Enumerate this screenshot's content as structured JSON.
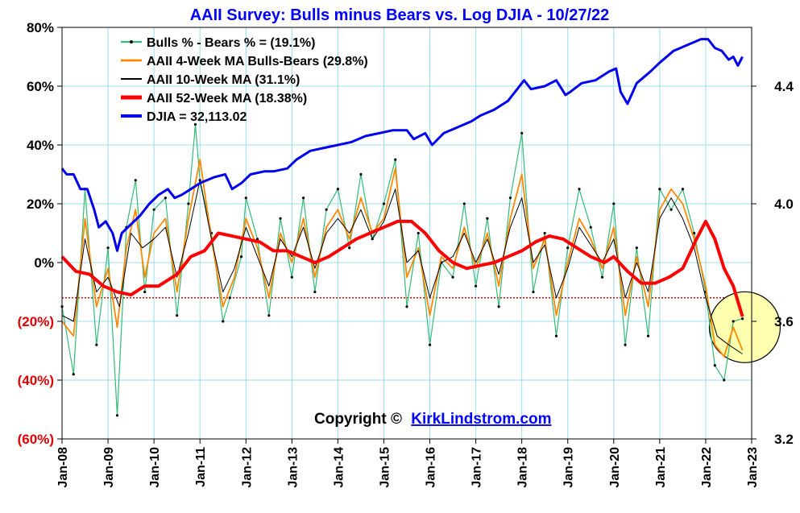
{
  "chart_data": {
    "type": "line",
    "title": "AAII Survey: Bulls minus Bears vs. Log DJIA - 10/27/22",
    "copyright_prefix": "Copyright ©",
    "copyright_link": "KirkLindstrom.com",
    "left_axis": {
      "ylim": [
        -60,
        80
      ],
      "ticks": [
        80,
        60,
        40,
        20,
        0,
        -20,
        -40,
        -60
      ],
      "tick_labels": [
        "80%",
        "60%",
        "40%",
        "20%",
        "0%",
        "(20%)",
        "(40%)",
        "(60%)"
      ],
      "negative_color": "#e00000"
    },
    "right_axis": {
      "ylim": [
        3.2,
        4.6
      ],
      "ticks": [
        4.4,
        4.0,
        3.6,
        3.2
      ],
      "tick_labels": [
        "4.4",
        "4.0",
        "3.6",
        "3.2"
      ]
    },
    "x_axis": {
      "xlim": [
        2008.0,
        2023.0
      ],
      "tick_labels": [
        "Jan-08",
        "Jan-09",
        "Jan-10",
        "Jan-11",
        "Jan-12",
        "Jan-13",
        "Jan-14",
        "Jan-15",
        "Jan-16",
        "Jan-17",
        "Jan-18",
        "Jan-19",
        "Jan-20",
        "Jan-21",
        "Jan-22",
        "Jan-23"
      ]
    },
    "grid": true,
    "reference_line": {
      "value": -12,
      "color": "#e00000",
      "style": "dotted"
    },
    "highlight_circle": {
      "x": 2022.85,
      "y": 3.58,
      "fill": "#ffffb0"
    },
    "legend_position": "top-left",
    "series": [
      {
        "name": "Bulls % - Bears % = (19.1%)",
        "color": "#33bb77",
        "axis": "left",
        "x": [
          2008.0,
          2008.25,
          2008.5,
          2008.75,
          2009.0,
          2009.2,
          2009.4,
          2009.6,
          2009.8,
          2010.0,
          2010.25,
          2010.5,
          2010.75,
          2010.9,
          2011.0,
          2011.25,
          2011.5,
          2011.65,
          2011.9,
          2012.0,
          2012.25,
          2012.5,
          2012.75,
          2013.0,
          2013.25,
          2013.5,
          2013.75,
          2014.0,
          2014.25,
          2014.5,
          2014.75,
          2015.0,
          2015.25,
          2015.5,
          2015.75,
          2016.0,
          2016.25,
          2016.5,
          2016.75,
          2017.0,
          2017.25,
          2017.5,
          2017.75,
          2018.0,
          2018.25,
          2018.5,
          2018.75,
          2019.0,
          2019.25,
          2019.5,
          2019.75,
          2020.0,
          2020.25,
          2020.5,
          2020.75,
          2021.0,
          2021.25,
          2021.5,
          2021.75,
          2022.0,
          2022.2,
          2022.4,
          2022.6,
          2022.8
        ],
        "y": [
          -15,
          -38,
          25,
          -28,
          5,
          -52,
          12,
          28,
          -10,
          18,
          22,
          -18,
          20,
          47,
          28,
          10,
          -20,
          -12,
          2,
          22,
          8,
          -18,
          15,
          -5,
          22,
          -10,
          18,
          25,
          5,
          30,
          8,
          20,
          35,
          -15,
          10,
          -28,
          0,
          -5,
          20,
          -8,
          15,
          -15,
          22,
          44,
          -10,
          10,
          -25,
          5,
          25,
          12,
          -5,
          20,
          -28,
          5,
          -25,
          25,
          18,
          25,
          10,
          -10,
          -35,
          -40,
          -20,
          -19.1
        ]
      },
      {
        "name": "AAII 4-Week MA Bulls-Bears (29.8%)",
        "color": "#ff8800",
        "axis": "left",
        "x": [
          2008.0,
          2008.25,
          2008.5,
          2008.75,
          2009.0,
          2009.2,
          2009.4,
          2009.6,
          2009.8,
          2010.0,
          2010.25,
          2010.5,
          2010.75,
          2011.0,
          2011.25,
          2011.5,
          2011.75,
          2012.0,
          2012.25,
          2012.5,
          2012.75,
          2013.0,
          2013.25,
          2013.5,
          2013.75,
          2014.0,
          2014.25,
          2014.5,
          2014.75,
          2015.0,
          2015.25,
          2015.5,
          2015.75,
          2016.0,
          2016.25,
          2016.5,
          2016.75,
          2017.0,
          2017.25,
          2017.5,
          2017.75,
          2018.0,
          2018.25,
          2018.5,
          2018.75,
          2019.0,
          2019.25,
          2019.5,
          2019.75,
          2020.0,
          2020.25,
          2020.5,
          2020.75,
          2021.0,
          2021.25,
          2021.5,
          2021.75,
          2022.0,
          2022.2,
          2022.4,
          2022.6,
          2022.8
        ],
        "y": [
          -20,
          -25,
          15,
          -15,
          -2,
          -22,
          5,
          18,
          -5,
          10,
          15,
          -10,
          15,
          35,
          8,
          -15,
          -5,
          15,
          5,
          -12,
          10,
          0,
          15,
          -5,
          12,
          18,
          8,
          22,
          10,
          15,
          32,
          -5,
          5,
          -18,
          2,
          -2,
          12,
          -2,
          10,
          -8,
          15,
          30,
          -2,
          8,
          -18,
          0,
          15,
          8,
          -2,
          12,
          -18,
          2,
          -15,
          18,
          25,
          20,
          8,
          -8,
          -28,
          -32,
          -22,
          -29.8
        ]
      },
      {
        "name": "AAII 10-Week MA (31.1%)",
        "color": "#000000",
        "axis": "left",
        "x": [
          2008.0,
          2008.25,
          2008.5,
          2008.75,
          2009.0,
          2009.25,
          2009.5,
          2009.75,
          2010.0,
          2010.25,
          2010.5,
          2010.75,
          2011.0,
          2011.25,
          2011.5,
          2011.75,
          2012.0,
          2012.25,
          2012.5,
          2012.75,
          2013.0,
          2013.25,
          2013.5,
          2013.75,
          2014.0,
          2014.25,
          2014.5,
          2014.75,
          2015.0,
          2015.25,
          2015.5,
          2015.75,
          2016.0,
          2016.25,
          2016.5,
          2016.75,
          2017.0,
          2017.25,
          2017.5,
          2017.75,
          2018.0,
          2018.25,
          2018.5,
          2018.75,
          2019.0,
          2019.25,
          2019.5,
          2019.75,
          2020.0,
          2020.25,
          2020.5,
          2020.75,
          2021.0,
          2021.25,
          2021.5,
          2021.75,
          2022.0,
          2022.25,
          2022.5,
          2022.8
        ],
        "y": [
          -18,
          -20,
          8,
          -10,
          -5,
          -15,
          10,
          5,
          8,
          12,
          -5,
          10,
          28,
          8,
          -10,
          -2,
          12,
          2,
          -8,
          8,
          2,
          12,
          -2,
          10,
          15,
          10,
          18,
          8,
          14,
          25,
          0,
          4,
          -12,
          0,
          2,
          10,
          0,
          8,
          -4,
          12,
          22,
          0,
          6,
          -12,
          -2,
          12,
          6,
          0,
          8,
          -12,
          0,
          -10,
          15,
          22,
          15,
          5,
          -12,
          -25,
          -28,
          -31.1
        ]
      },
      {
        "name": "AAII 52-Week MA (18.38%)",
        "color": "#ff0000",
        "axis": "left",
        "x": [
          2008.0,
          2008.3,
          2008.6,
          2008.9,
          2009.2,
          2009.5,
          2009.8,
          2010.1,
          2010.5,
          2010.8,
          2011.1,
          2011.4,
          2011.7,
          2012.0,
          2012.3,
          2012.6,
          2012.9,
          2013.2,
          2013.5,
          2013.8,
          2014.1,
          2014.4,
          2014.7,
          2015.0,
          2015.3,
          2015.6,
          2015.9,
          2016.2,
          2016.5,
          2016.8,
          2017.1,
          2017.4,
          2017.7,
          2018.0,
          2018.3,
          2018.6,
          2018.9,
          2019.2,
          2019.5,
          2019.8,
          2020.0,
          2020.3,
          2020.6,
          2020.9,
          2021.2,
          2021.5,
          2021.8,
          2022.0,
          2022.2,
          2022.4,
          2022.6,
          2022.8
        ],
        "y": [
          2,
          -3,
          -4,
          -8,
          -10,
          -11,
          -8,
          -8,
          -4,
          2,
          4,
          10,
          9,
          8,
          7,
          4,
          4,
          2,
          0,
          2,
          5,
          8,
          10,
          12,
          14,
          14,
          10,
          4,
          0,
          -2,
          -1,
          0,
          2,
          4,
          7,
          9,
          8,
          5,
          2,
          0,
          2,
          -3,
          -7,
          -7,
          -5,
          -2,
          8,
          14,
          8,
          -2,
          -8,
          -18.38
        ]
      },
      {
        "name": "DJIA =  32,113.02",
        "color": "#0000ee",
        "axis": "right",
        "x": [
          2008.0,
          2008.1,
          2008.25,
          2008.4,
          2008.55,
          2008.7,
          2008.8,
          2008.95,
          2009.1,
          2009.2,
          2009.3,
          2009.5,
          2009.7,
          2009.9,
          2010.1,
          2010.3,
          2010.45,
          2010.6,
          2010.8,
          2011.0,
          2011.3,
          2011.55,
          2011.7,
          2011.9,
          2012.1,
          2012.4,
          2012.6,
          2012.9,
          2013.1,
          2013.4,
          2013.7,
          2014.0,
          2014.3,
          2014.6,
          2014.9,
          2015.2,
          2015.5,
          2015.65,
          2015.9,
          2016.05,
          2016.3,
          2016.6,
          2016.9,
          2017.1,
          2017.4,
          2017.7,
          2017.9,
          2018.05,
          2018.2,
          2018.5,
          2018.75,
          2018.95,
          2019.05,
          2019.3,
          2019.6,
          2019.9,
          2020.05,
          2020.15,
          2020.3,
          2020.5,
          2020.8,
          2021.0,
          2021.3,
          2021.6,
          2021.9,
          2022.05,
          2022.2,
          2022.35,
          2022.5,
          2022.6,
          2022.7,
          2022.8
        ],
        "y": [
          4.12,
          4.1,
          4.1,
          4.05,
          4.05,
          3.98,
          3.92,
          3.94,
          3.9,
          3.84,
          3.9,
          3.93,
          3.96,
          4.0,
          4.03,
          4.05,
          4.02,
          4.03,
          4.05,
          4.07,
          4.09,
          4.1,
          4.05,
          4.07,
          4.1,
          4.11,
          4.11,
          4.12,
          4.15,
          4.18,
          4.19,
          4.2,
          4.21,
          4.23,
          4.24,
          4.25,
          4.25,
          4.22,
          4.24,
          4.2,
          4.24,
          4.26,
          4.28,
          4.3,
          4.32,
          4.35,
          4.39,
          4.42,
          4.39,
          4.4,
          4.42,
          4.37,
          4.38,
          4.41,
          4.42,
          4.45,
          4.46,
          4.38,
          4.34,
          4.41,
          4.45,
          4.48,
          4.52,
          4.54,
          4.56,
          4.56,
          4.53,
          4.52,
          4.49,
          4.5,
          4.47,
          4.5
        ]
      }
    ]
  }
}
